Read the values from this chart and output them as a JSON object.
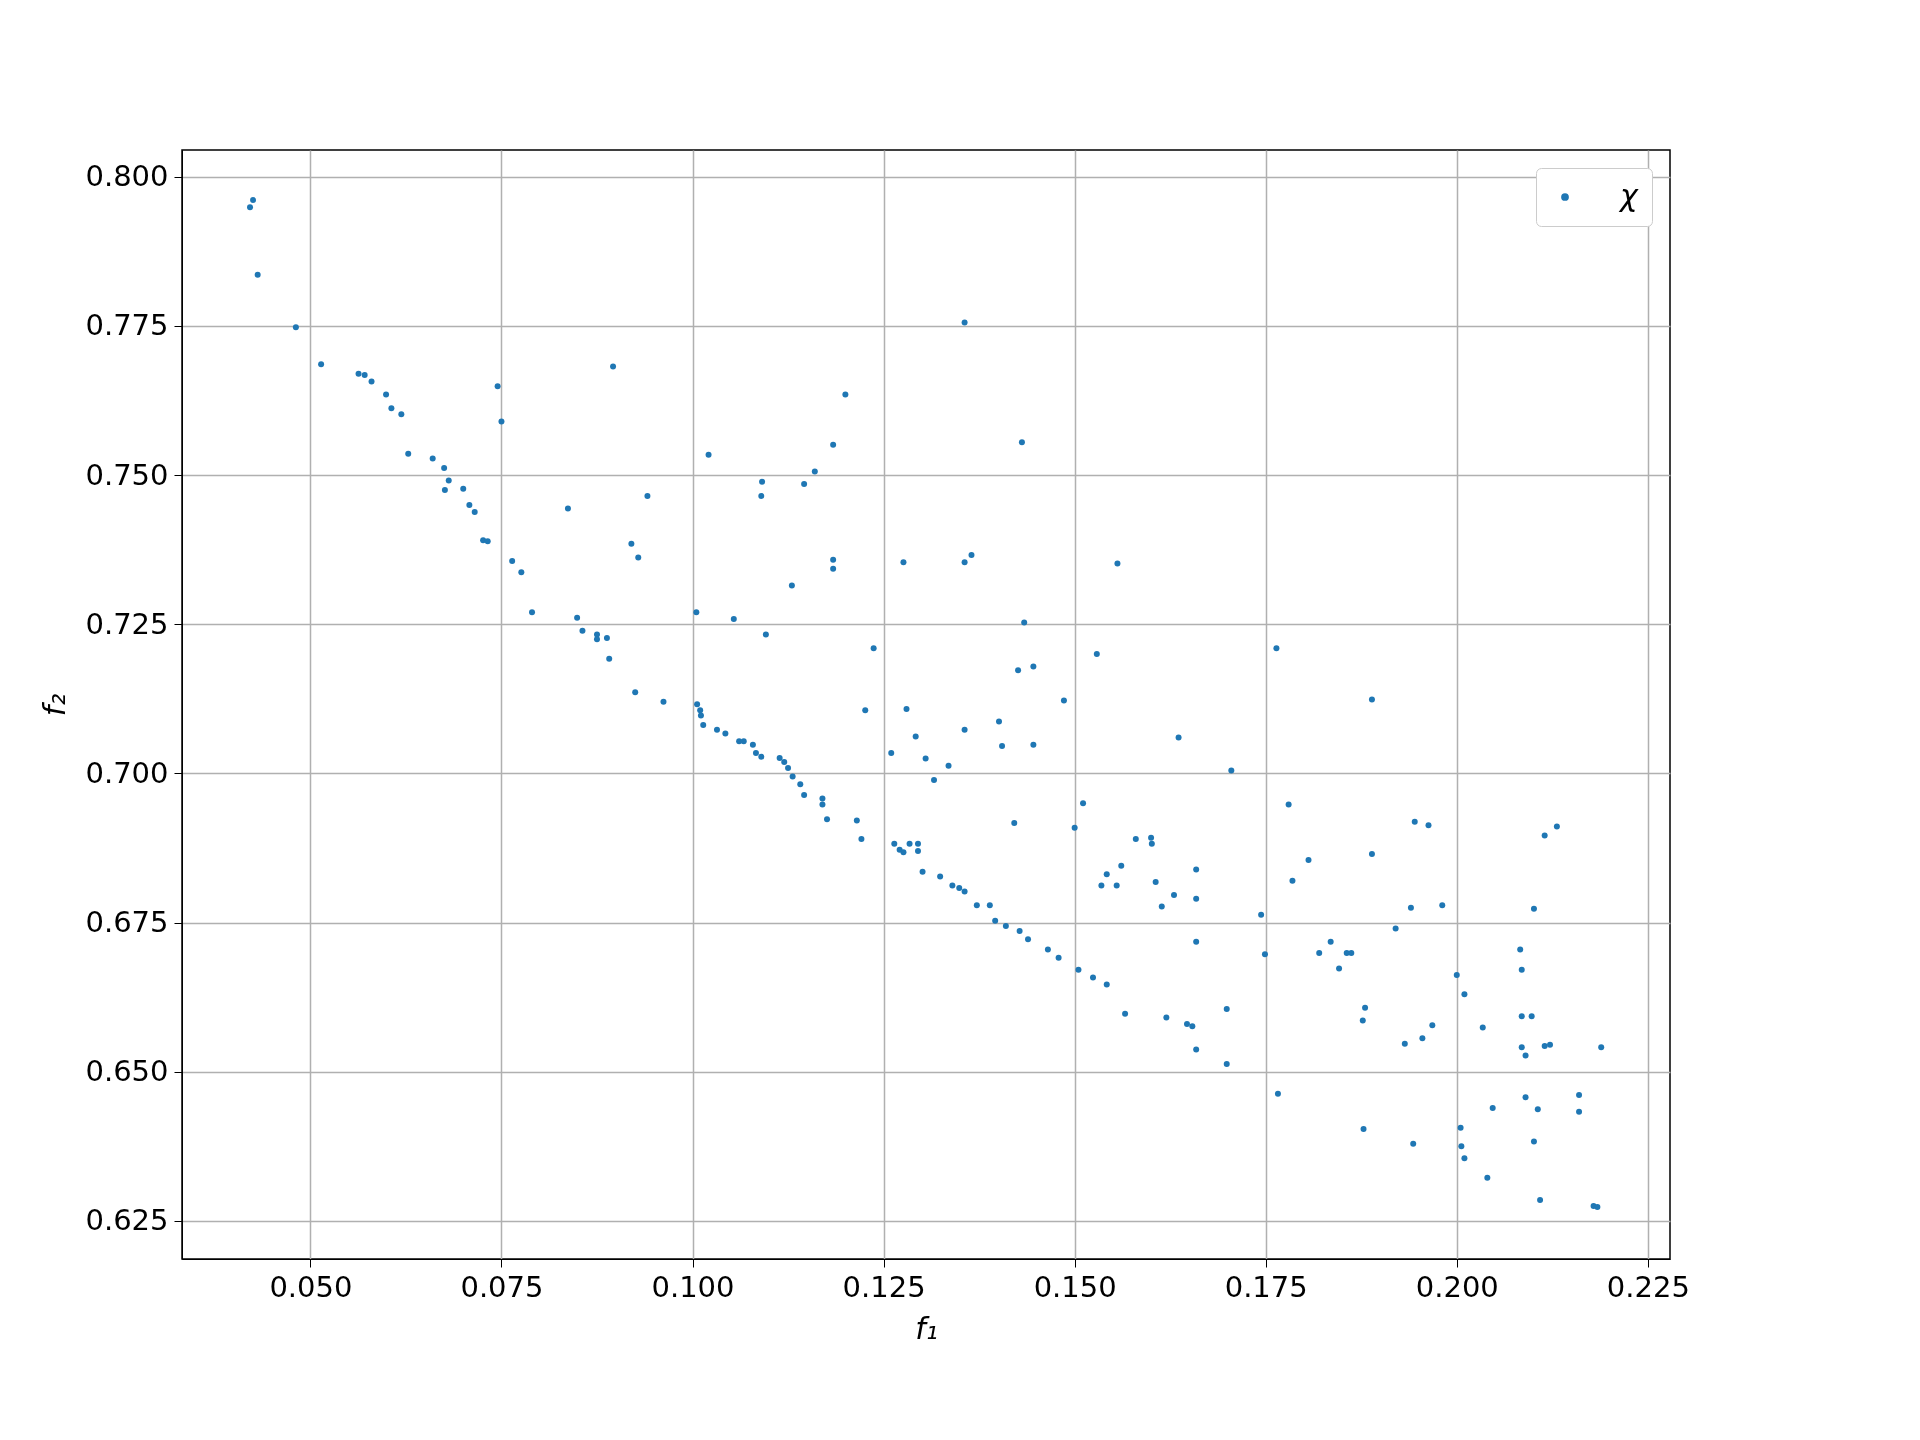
{
  "chart_data": {
    "type": "scatter",
    "xlabel": "f₁",
    "ylabel": "f₂",
    "xlim": [
      0.0332,
      0.2279
    ],
    "ylim": [
      0.6186,
      0.8045
    ],
    "xticks": [
      {
        "value": 0.05,
        "label": "0.050"
      },
      0.075,
      {
        "value": 0.1,
        "label": "0.100"
      },
      0.125,
      {
        "value": 0.15,
        "label": "0.150"
      },
      0.175,
      {
        "value": 0.2,
        "label": "0.200"
      },
      0.225
    ],
    "yticks": [
      0.625,
      {
        "value": 0.65,
        "label": "0.650"
      },
      0.675,
      {
        "value": 0.7,
        "label": "0.700"
      },
      0.725,
      {
        "value": 0.75,
        "label": "0.750"
      },
      0.775,
      {
        "value": 0.8,
        "label": "0.800"
      }
    ],
    "grid": true,
    "legend": "top right",
    "marker": "circle",
    "series": [
      {
        "name": "χ",
        "color": "#1f77b4",
        "x": [
          0.0421,
          0.0425,
          0.0431,
          0.0481,
          0.0514,
          0.0563,
          0.0571,
          0.058,
          0.0599,
          0.0606,
          0.0619,
          0.0628,
          0.066,
          0.0675,
          0.0681,
          0.0676,
          0.07,
          0.0708,
          0.0715,
          0.0726,
          0.0732,
          0.0745,
          0.075,
          0.0764,
          0.0776,
          0.079,
          0.0837,
          0.0849,
          0.0856,
          0.0875,
          0.0875,
          0.0888,
          0.0891,
          0.0896,
          0.092,
          0.0929,
          0.0925,
          0.0941,
          0.0962,
          0.1005,
          0.1006,
          0.101,
          0.1011,
          0.1014,
          0.1021,
          0.1032,
          0.1043,
          0.1054,
          0.1061,
          0.1067,
          0.1079,
          0.1083,
          0.109,
          0.1091,
          0.109,
          0.1096,
          0.1114,
          0.112,
          0.1125,
          0.113,
          0.1131,
          0.1141,
          0.1146,
          0.1146,
          0.116,
          0.117,
          0.117,
          0.1176,
          0.1184,
          0.1184,
          0.1184,
          0.12,
          0.1215,
          0.1221,
          0.1226,
          0.1237,
          0.126,
          0.1264,
          0.1271,
          0.1276,
          0.1276,
          0.128,
          0.1284,
          0.1292,
          0.1295,
          0.1295,
          0.1301,
          0.1305,
          0.1316,
          0.1324,
          0.1335,
          0.134,
          0.1349,
          0.1356,
          0.1356,
          0.1356,
          0.1356,
          0.1365,
          0.1372,
          0.1389,
          0.1396,
          0.1401,
          0.1405,
          0.141,
          0.1421,
          0.1426,
          0.1431,
          0.1434,
          0.1428,
          0.1439,
          0.1446,
          0.1446,
          0.1465,
          0.1479,
          0.1486,
          0.15,
          0.1505,
          0.1511,
          0.1524,
          0.1529,
          0.1535,
          0.1542,
          0.1542,
          0.1555,
          0.1556,
          0.1561,
          0.1566,
          0.158,
          0.16,
          0.1601,
          0.1606,
          0.1614,
          0.162,
          0.163,
          0.1636,
          0.1647,
          0.1654,
          0.1659,
          0.1659,
          0.1659,
          0.1659,
          0.1699,
          0.1699,
          0.1705,
          0.1744,
          0.1749,
          0.1764,
          0.1766,
          0.178,
          0.1785,
          0.1806,
          0.182,
          0.1835,
          0.1846,
          0.1856,
          0.1862,
          0.1877,
          0.188,
          0.1878,
          0.1889,
          0.1889,
          0.192,
          0.1932,
          0.194,
          0.1943,
          0.1945,
          0.1955,
          0.1963,
          0.1968,
          0.1981,
          0.2,
          0.2005,
          0.2006,
          0.201,
          0.201,
          0.2034,
          0.204,
          0.2047,
          0.2083,
          0.2085,
          0.2085,
          0.2085,
          0.209,
          0.209,
          0.2098,
          0.2101,
          0.2101,
          0.2106,
          0.2109,
          0.2115,
          0.2115,
          0.2122,
          0.2131,
          0.216,
          0.216,
          0.2179,
          0.2184,
          0.2189
        ],
        "values": [
          0.7949,
          0.7961,
          0.7836,
          0.7748,
          0.7686,
          0.767,
          0.7668,
          0.7657,
          0.7635,
          0.7612,
          0.7602,
          0.7536,
          0.7528,
          0.7512,
          0.7491,
          0.7475,
          0.7477,
          0.745,
          0.7438,
          0.7391,
          0.7389,
          0.7649,
          0.759,
          0.7356,
          0.7337,
          0.727,
          0.7444,
          0.7261,
          0.7239,
          0.7233,
          0.7225,
          0.7227,
          0.7192,
          0.7682,
          0.7385,
          0.7362,
          0.7136,
          0.7465,
          0.712,
          0.727,
          0.7116,
          0.7106,
          0.7097,
          0.7081,
          0.7534,
          0.7073,
          0.7067,
          0.7259,
          0.7054,
          0.7054,
          0.7048,
          0.7034,
          0.7028,
          0.7489,
          0.7465,
          0.7233,
          0.7026,
          0.7019,
          0.7009,
          0.7315,
          0.6995,
          0.6982,
          0.6964,
          0.7485,
          0.7506,
          0.6958,
          0.6948,
          0.6923,
          0.7551,
          0.7358,
          0.7343,
          0.7635,
          0.6921,
          0.689,
          0.7106,
          0.721,
          0.7034,
          0.6882,
          0.6872,
          0.7354,
          0.6868,
          0.7108,
          0.6882,
          0.7062,
          0.687,
          0.6882,
          0.6835,
          0.7025,
          0.6989,
          0.6827,
          0.7013,
          0.6812,
          0.6808,
          0.6802,
          0.7756,
          0.7354,
          0.7073,
          0.7366,
          0.6779,
          0.6779,
          0.6753,
          0.7087,
          0.7046,
          0.6744,
          0.6917,
          0.7173,
          0.7555,
          0.7253,
          0.6736,
          0.6722,
          0.7179,
          0.7048,
          0.6705,
          0.6691,
          0.7122,
          0.6909,
          0.6671,
          0.695,
          0.6658,
          0.72,
          0.6812,
          0.6831,
          0.6646,
          0.6812,
          0.7352,
          0.6845,
          0.6597,
          0.689,
          0.6892,
          0.6882,
          0.6818,
          0.6777,
          0.6591,
          0.6796,
          0.706,
          0.658,
          0.6576,
          0.6839,
          0.679,
          0.6718,
          0.6537,
          0.6605,
          0.6513,
          0.7005,
          0.6763,
          0.6697,
          0.721,
          0.6463,
          0.6948,
          0.682,
          0.6855,
          0.6699,
          0.6718,
          0.6673,
          0.6699,
          0.6699,
          0.6586,
          0.6607,
          0.6404,
          0.6865,
          0.7124,
          0.674,
          0.6547,
          0.6775,
          0.6379,
          0.6919,
          0.6556,
          0.6913,
          0.6578,
          0.6779,
          0.6662,
          0.6406,
          0.6375,
          0.6355,
          0.663,
          0.6574,
          0.6322,
          0.6439,
          0.6705,
          0.6671,
          0.6593,
          0.6541,
          0.6527,
          0.6457,
          0.6593,
          0.6773,
          0.6383,
          0.6437,
          0.6285,
          0.6896,
          0.6543,
          0.6545,
          0.6911,
          0.6461,
          0.6433,
          0.6275,
          0.6273,
          0.6541
        ]
      }
    ]
  }
}
